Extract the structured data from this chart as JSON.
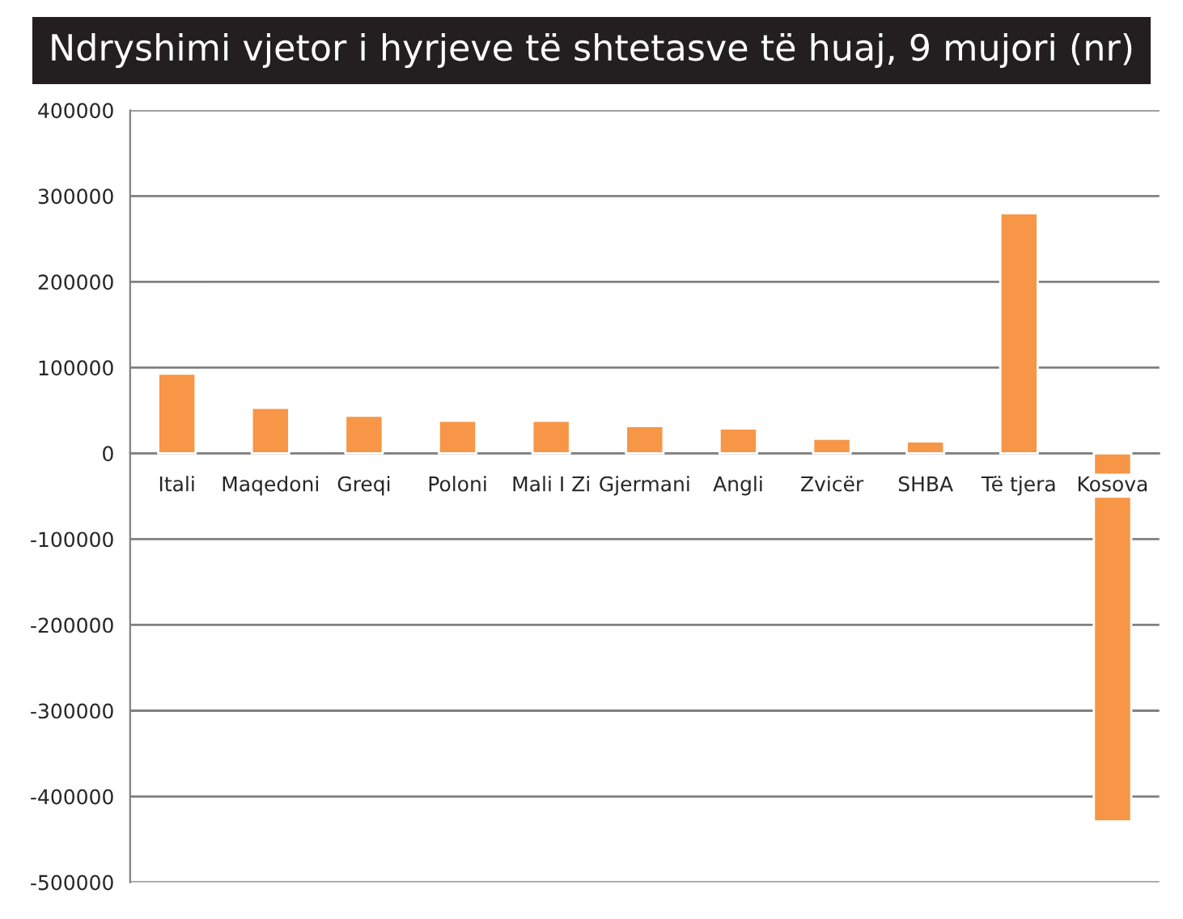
{
  "chart_data": {
    "type": "bar",
    "title": "Ndryshimi vjetor i hyrjeve të shtetasve të huaj, 9 mujori (nr)",
    "categories": [
      "Itali",
      "Maqedoni",
      "Greqi",
      "Poloni",
      "Mali I Zi",
      "Gjermani",
      "Angli",
      "Zvicër",
      "SHBA",
      "Të tjera",
      "Kosova"
    ],
    "values": [
      93000,
      53000,
      44000,
      38000,
      38000,
      32000,
      29000,
      17000,
      14000,
      280000,
      -429000
    ],
    "color": "#f79646",
    "ylim": [
      -500000,
      400000
    ],
    "yticks": [
      -500000,
      -400000,
      -300000,
      -200000,
      -100000,
      0,
      100000,
      200000,
      300000,
      400000
    ],
    "grid": "y"
  }
}
